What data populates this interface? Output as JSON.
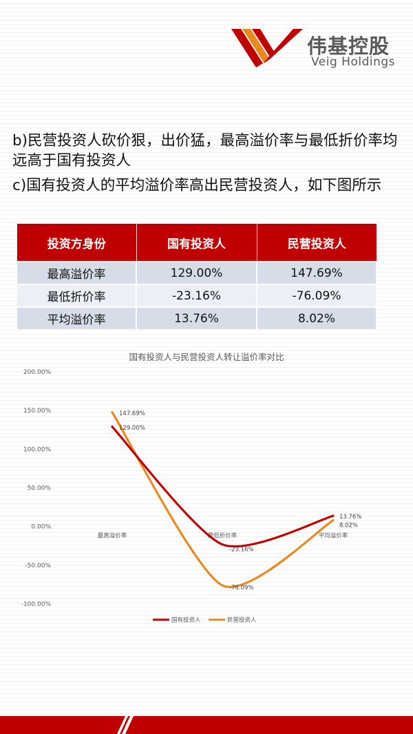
{
  "brand": {
    "name_cn": "伟基控股",
    "name_en": "Veig Holdings",
    "colors": {
      "red": "#c00000",
      "orange": "#e88b1f"
    }
  },
  "text": {
    "line_b": "b)民营投资人砍价狠，出价猛，最高溢价率与最低折价率均远高于国有投资人",
    "line_c": "c)国有投资人的平均溢价率高出民营投资人，如下图所示"
  },
  "table": {
    "headers": [
      "投资方身份",
      "国有投资人",
      "民营投资人"
    ],
    "rows": [
      [
        "最高溢价率",
        "129.00%",
        "147.69%"
      ],
      [
        "最低折价率",
        "-23.16%",
        "-76.09%"
      ],
      [
        "平均溢价率",
        "13.76%",
        "8.02%"
      ]
    ]
  },
  "chart_data": {
    "type": "line",
    "title": "国有投资人与民营投资人转让溢价率对比",
    "categories": [
      "最高溢价率",
      "最低折价率",
      "平均溢价率"
    ],
    "series": [
      {
        "name": "国有投资人",
        "values": [
          129.0,
          -23.16,
          13.76
        ],
        "labels": [
          "129.00%",
          "-23.16%",
          "13.76%"
        ],
        "color": "#c00000"
      },
      {
        "name": "民营投资人",
        "values": [
          147.69,
          -76.09,
          8.02
        ],
        "labels": [
          "147.69%",
          "-76.09%",
          "8.02%"
        ],
        "color": "#e88b1f"
      }
    ],
    "ylim": [
      -100,
      200
    ],
    "yticks": [
      "-100.00%",
      "-50.00%",
      "0.00%",
      "50.00%",
      "100.00%",
      "150.00%",
      "200.00%"
    ],
    "legend": "bottom",
    "grid": false,
    "smooth": true
  }
}
